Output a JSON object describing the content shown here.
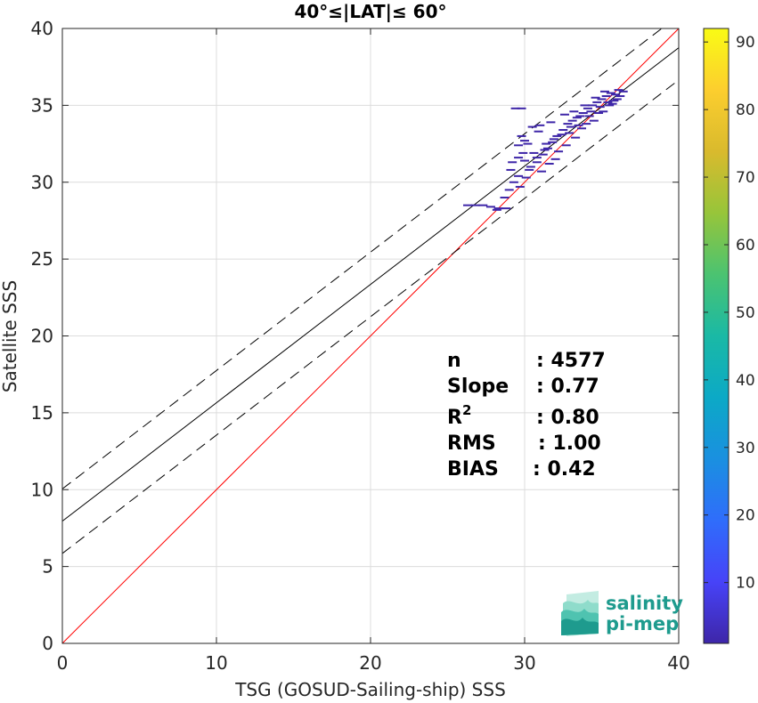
{
  "chart_data": {
    "type": "scatter",
    "title": "40°≤|LAT|≤ 60°",
    "xlabel": "TSG (GOSUD-Sailing-ship) SSS",
    "ylabel": "Satellite SSS",
    "xlim": [
      0,
      40
    ],
    "ylim": [
      0,
      40
    ],
    "xticks": [
      "0",
      "10",
      "20",
      "30",
      "40"
    ],
    "yticks": [
      "0",
      "5",
      "10",
      "15",
      "20",
      "25",
      "30",
      "35",
      "40"
    ],
    "grid": true,
    "lines": [
      {
        "kind": "identity",
        "slope": 1.0,
        "intercept": 0.0,
        "color": "#ff0000",
        "style": "solid"
      },
      {
        "kind": "fit",
        "slope": 0.77,
        "intercept": 7.95,
        "color": "#000000",
        "style": "solid"
      },
      {
        "kind": "fit-upper",
        "slope": 0.77,
        "intercept": 10.05,
        "color": "#000000",
        "style": "dashed"
      },
      {
        "kind": "fit-lower",
        "slope": 0.77,
        "intercept": 5.85,
        "color": "#000000",
        "style": "dashed"
      }
    ],
    "density_points": [
      [
        26.3,
        28.5
      ],
      [
        26.8,
        28.5
      ],
      [
        27.3,
        28.5
      ],
      [
        27.8,
        28.4
      ],
      [
        28.3,
        28.3
      ],
      [
        28.8,
        28.3
      ],
      [
        28.2,
        28.2
      ],
      [
        28.7,
        29.0
      ],
      [
        29.0,
        29.5
      ],
      [
        29.3,
        30.0
      ],
      [
        29.6,
        30.4
      ],
      [
        29.1,
        30.8
      ],
      [
        29.4,
        34.8
      ],
      [
        29.8,
        34.8
      ],
      [
        29.6,
        32.4
      ],
      [
        30.0,
        32.7
      ],
      [
        29.8,
        33.0
      ],
      [
        30.5,
        33.6
      ],
      [
        31.0,
        33.7
      ],
      [
        29.6,
        31.6
      ],
      [
        29.2,
        31.3
      ],
      [
        30.0,
        31.4
      ],
      [
        30.4,
        31.0
      ],
      [
        30.8,
        31.3
      ],
      [
        31.2,
        31.8
      ],
      [
        31.5,
        32.2
      ],
      [
        31.8,
        32.6
      ],
      [
        32.1,
        33.0
      ],
      [
        32.5,
        33.4
      ],
      [
        32.8,
        33.8
      ],
      [
        33.1,
        34.0
      ],
      [
        33.4,
        34.2
      ],
      [
        33.8,
        34.5
      ],
      [
        34.1,
        34.8
      ],
      [
        34.4,
        35.0
      ],
      [
        34.7,
        35.2
      ],
      [
        35.0,
        35.4
      ],
      [
        35.3,
        35.6
      ],
      [
        35.6,
        35.8
      ],
      [
        35.9,
        35.7
      ],
      [
        36.2,
        35.6
      ],
      [
        35.4,
        35.2
      ],
      [
        35.8,
        35.3
      ],
      [
        34.9,
        34.9
      ],
      [
        34.3,
        34.6
      ],
      [
        33.6,
        34.3
      ],
      [
        33.0,
        33.6
      ],
      [
        32.4,
        33.1
      ],
      [
        31.9,
        32.8
      ],
      [
        31.3,
        32.1
      ],
      [
        30.8,
        31.6
      ],
      [
        30.3,
        30.8
      ],
      [
        31.6,
        31.2
      ],
      [
        32.2,
        32.0
      ],
      [
        32.9,
        33.2
      ],
      [
        33.5,
        33.7
      ],
      [
        34.2,
        34.3
      ],
      [
        34.8,
        34.5
      ],
      [
        35.5,
        35.0
      ],
      [
        36.0,
        35.4
      ],
      [
        36.4,
        35.9
      ],
      [
        35.2,
        35.9
      ],
      [
        34.6,
        35.5
      ],
      [
        33.9,
        35.0
      ],
      [
        33.2,
        34.6
      ],
      [
        32.6,
        34.4
      ],
      [
        31.7,
        33.9
      ],
      [
        30.9,
        33.3
      ],
      [
        30.2,
        32.5
      ],
      [
        29.9,
        31.9
      ],
      [
        30.6,
        31.9
      ],
      [
        31.4,
        32.5
      ],
      [
        32.0,
        31.5
      ],
      [
        32.7,
        32.4
      ],
      [
        33.3,
        32.9
      ],
      [
        34.0,
        33.8
      ],
      [
        34.5,
        34.0
      ],
      [
        35.1,
        34.6
      ],
      [
        35.7,
        35.1
      ],
      [
        36.1,
        36.0
      ],
      [
        33.7,
        33.5
      ],
      [
        31.1,
        30.7
      ],
      [
        30.1,
        30.3
      ],
      [
        29.7,
        29.7
      ]
    ],
    "colorbar": {
      "ticks": [
        "10",
        "20",
        "30",
        "40",
        "50",
        "60",
        "70",
        "80",
        "90"
      ],
      "tick_values": [
        10,
        20,
        30,
        40,
        50,
        60,
        70,
        80,
        90
      ],
      "min": 1,
      "max": 92,
      "colormap": [
        "#3e26a8",
        "#4743f8",
        "#2f6dfb",
        "#1a90e0",
        "#0ca9c6",
        "#1ab9a5",
        "#4bc371",
        "#97c53a",
        "#d9ba2d",
        "#fcce2e",
        "#f9fb15"
      ]
    },
    "stats": [
      {
        "label": "n",
        "value": ": 4577"
      },
      {
        "label": "Slope",
        "value": ": 0.77"
      },
      {
        "label": "R",
        "sup": "2",
        "value": ": 0.80"
      },
      {
        "label": "RMS",
        "value": ": 1.00"
      },
      {
        "label": "BIAS",
        "value": ": 0.42"
      }
    ],
    "point_color": "#3e26a8"
  },
  "logo": {
    "line1": "salinity",
    "line2": "pi-mep",
    "colors": [
      "#1e9b8e",
      "#4fc3b0",
      "#8fdccb",
      "#c3ece2"
    ]
  }
}
